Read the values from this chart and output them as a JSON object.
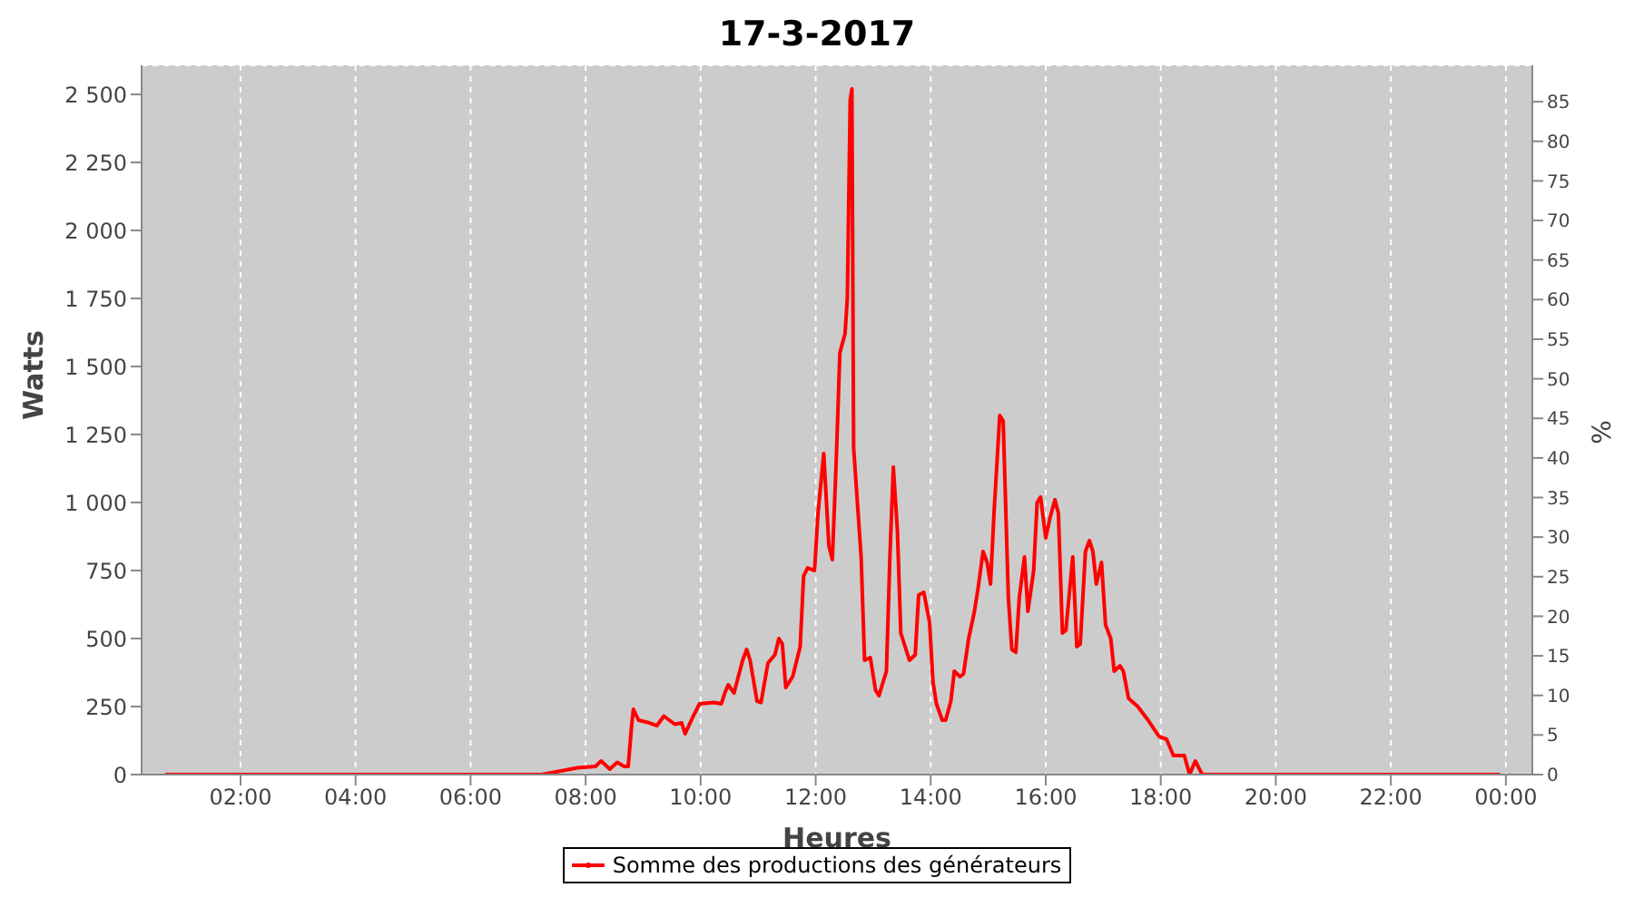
{
  "chart_data": {
    "type": "line",
    "title": "17-3-2017",
    "xlabel": "Heures",
    "ylabel": "Watts",
    "y2label": "%",
    "xlim": [
      0.28,
      24.46
    ],
    "xticks": [
      {
        "value": 2,
        "label": "02:00"
      },
      {
        "value": 4,
        "label": "04:00"
      },
      {
        "value": 6,
        "label": "06:00"
      },
      {
        "value": 8,
        "label": "08:00"
      },
      {
        "value": 10,
        "label": "10:00"
      },
      {
        "value": 12,
        "label": "12:00"
      },
      {
        "value": 14,
        "label": "14:00"
      },
      {
        "value": 16,
        "label": "16:00"
      },
      {
        "value": 18,
        "label": "18:00"
      },
      {
        "value": 20,
        "label": "20:00"
      },
      {
        "value": 22,
        "label": "22:00"
      },
      {
        "value": 24,
        "label": "00:00"
      }
    ],
    "ylim": [
      0,
      2607
    ],
    "yticks": [
      0,
      250,
      500,
      750,
      {
        "value": 1000,
        "label": "1 000"
      },
      {
        "value": 1250,
        "label": "1 250"
      },
      {
        "value": 1500,
        "label": "1 500"
      },
      {
        "value": 1750,
        "label": "1 750"
      },
      {
        "value": 2000,
        "label": "2 000"
      },
      {
        "value": 2250,
        "label": "2 250"
      },
      {
        "value": 2500,
        "label": "2 500"
      }
    ],
    "y2lim": [
      0,
      89.6
    ],
    "y2ticks": [
      0,
      5,
      10,
      15,
      20,
      25,
      30,
      35,
      40,
      45,
      50,
      55,
      60,
      65,
      70,
      75,
      80,
      85
    ],
    "grid": true,
    "legend": "bottom",
    "marker": "none",
    "line_style": "solid",
    "series": [
      {
        "name": "Somme des productions des  générateurs",
        "color": "#ff0000",
        "x": [
          0.69,
          7.24,
          7.86,
          8.17,
          8.27,
          8.42,
          8.55,
          8.67,
          8.74,
          8.8,
          8.83,
          8.92,
          9.11,
          9.24,
          9.36,
          9.55,
          9.67,
          9.73,
          9.86,
          9.98,
          10.23,
          10.36,
          10.42,
          10.48,
          10.58,
          10.73,
          10.8,
          10.86,
          10.98,
          11.05,
          11.17,
          11.29,
          11.36,
          11.42,
          11.48,
          11.6,
          11.73,
          11.79,
          11.86,
          11.98,
          12.04,
          12.14,
          12.23,
          12.29,
          12.36,
          12.42,
          12.51,
          12.55,
          12.6,
          12.63,
          12.66,
          12.79,
          12.85,
          12.95,
          13.04,
          13.1,
          13.23,
          13.29,
          13.35,
          13.42,
          13.48,
          13.54,
          13.63,
          13.73,
          13.79,
          13.88,
          13.98,
          14.04,
          14.1,
          14.2,
          14.26,
          14.35,
          14.41,
          14.51,
          14.57,
          14.66,
          14.76,
          14.82,
          14.91,
          14.98,
          15.04,
          15.1,
          15.2,
          15.26,
          15.35,
          15.41,
          15.48,
          15.54,
          15.63,
          15.69,
          15.79,
          15.85,
          15.91,
          16.0,
          16.07,
          16.16,
          16.22,
          16.29,
          16.35,
          16.47,
          16.54,
          16.6,
          16.69,
          16.76,
          16.82,
          16.88,
          16.97,
          17.04,
          17.13,
          17.19,
          17.29,
          17.35,
          17.44,
          17.6,
          17.78,
          17.97,
          18.1,
          18.22,
          18.41,
          18.5,
          18.6,
          18.72,
          23.9
        ],
        "values": [
          0,
          0,
          25,
          30,
          50,
          20,
          45,
          30,
          30,
          180,
          240,
          200,
          190,
          180,
          215,
          185,
          190,
          150,
          210,
          260,
          265,
          260,
          300,
          330,
          300,
          420,
          460,
          420,
          270,
          265,
          410,
          440,
          500,
          480,
          320,
          360,
          470,
          730,
          760,
          750,
          960,
          1180,
          840,
          790,
          1170,
          1550,
          1620,
          1750,
          2480,
          2520,
          1200,
          800,
          420,
          430,
          310,
          290,
          380,
          800,
          1130,
          900,
          520,
          480,
          420,
          440,
          660,
          670,
          560,
          340,
          260,
          200,
          200,
          270,
          380,
          360,
          370,
          500,
          600,
          680,
          820,
          780,
          700,
          960,
          1320,
          1300,
          650,
          460,
          450,
          650,
          800,
          600,
          750,
          1000,
          1020,
          870,
          940,
          1010,
          960,
          520,
          530,
          800,
          470,
          480,
          820,
          860,
          820,
          700,
          780,
          550,
          500,
          380,
          400,
          380,
          280,
          250,
          200,
          140,
          130,
          70,
          70,
          0,
          50,
          0,
          0
        ]
      }
    ]
  }
}
